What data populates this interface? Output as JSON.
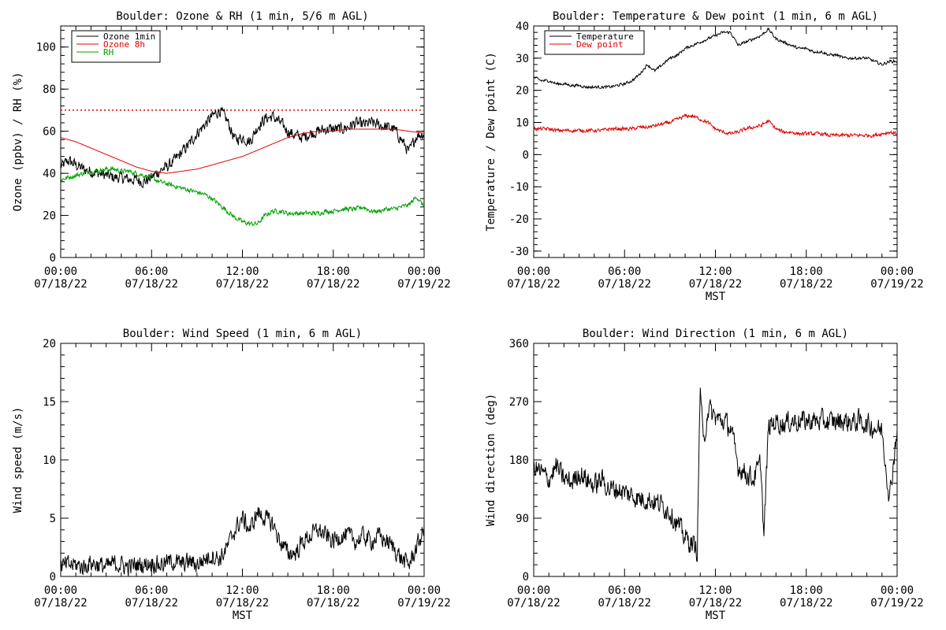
{
  "chart_data": [
    {
      "id": "ozone",
      "type": "line",
      "title": "Boulder: Ozone & RH (1 min, 5/6 m AGL)",
      "ylabel": "Ozone (ppbv) / RH (%)",
      "xlabel": "",
      "x_unit": "hour_of_day",
      "xlim": [
        0,
        24
      ],
      "ylim": [
        0,
        110
      ],
      "yticks": [
        0,
        20,
        40,
        60,
        80,
        100
      ],
      "xtick_labels": [
        [
          "00:00",
          "07/18/22"
        ],
        [
          "06:00",
          "07/18/22"
        ],
        [
          "12:00",
          "07/18/22"
        ],
        [
          "18:00",
          "07/18/22"
        ],
        [
          "00:00",
          "07/19/22"
        ]
      ],
      "legend": "top-left",
      "reference_line": {
        "y": 70,
        "color": "#e00000",
        "style": "dotted"
      },
      "series": [
        {
          "name": "Ozone 1min",
          "color": "#000000",
          "noise": 2.5,
          "x": [
            0,
            0.5,
            1,
            1.5,
            2,
            2.5,
            3,
            3.5,
            4,
            4.5,
            5,
            5.5,
            6,
            6.5,
            7,
            7.5,
            8,
            8.5,
            9,
            9.5,
            10,
            10.5,
            11,
            11.5,
            12,
            12.5,
            13,
            13.5,
            14,
            14.5,
            15,
            15.5,
            16,
            16.5,
            17,
            17.5,
            18,
            18.5,
            19,
            19.5,
            20,
            20.5,
            21,
            21.5,
            22,
            22.5,
            23,
            23.5,
            24
          ],
          "y": [
            43,
            46,
            44,
            42,
            41,
            40,
            39,
            38,
            38,
            37,
            37,
            36,
            38,
            41,
            43,
            46,
            50,
            54,
            59,
            63,
            67,
            70,
            65,
            56,
            57,
            55,
            62,
            66,
            67,
            64,
            60,
            58,
            57,
            59,
            60,
            61,
            61,
            61,
            62,
            64,
            63,
            64,
            63,
            62,
            61,
            56,
            50,
            58,
            59
          ]
        },
        {
          "name": "Ozone 8h",
          "color": "#e00000",
          "noise": 0,
          "x": [
            0,
            1,
            2,
            3,
            4,
            5,
            6,
            7,
            8,
            9,
            10,
            11,
            12,
            13,
            14,
            15,
            16,
            17,
            18,
            19,
            20,
            21,
            22,
            23,
            24
          ],
          "y": [
            57,
            55,
            52,
            49,
            46,
            43,
            41,
            40,
            41,
            42,
            44,
            46,
            48,
            51,
            54,
            57,
            59,
            60,
            60,
            61,
            61,
            61,
            61,
            60,
            59
          ]
        },
        {
          "name": "RH",
          "color": "#00a000",
          "noise": 1.0,
          "x": [
            0,
            0.5,
            1,
            1.5,
            2,
            2.5,
            3,
            3.5,
            4,
            4.5,
            5,
            5.5,
            6,
            6.5,
            7,
            7.5,
            8,
            8.5,
            9,
            9.5,
            10,
            10.5,
            11,
            11.5,
            12,
            12.5,
            13,
            13.5,
            14,
            14.5,
            15,
            15.5,
            16,
            16.5,
            17,
            17.5,
            18,
            18.5,
            19,
            19.5,
            20,
            20.5,
            21,
            21.5,
            22,
            22.5,
            23,
            23.5,
            24
          ],
          "y": [
            37,
            38,
            39,
            40,
            41,
            41,
            42,
            42,
            41,
            41,
            40,
            39,
            38,
            36,
            35,
            34,
            33,
            32,
            31,
            30,
            28,
            25,
            22,
            19,
            17,
            16,
            16,
            20,
            22,
            22,
            21,
            21,
            21,
            21,
            21,
            22,
            22,
            23,
            23,
            23,
            24,
            22,
            22,
            23,
            23,
            24,
            25,
            29,
            24
          ]
        }
      ]
    },
    {
      "id": "temp",
      "type": "line",
      "title": "Boulder: Temperature & Dew point (1 min, 6 m AGL)",
      "ylabel": "Temperature / Dew point (C)",
      "xlabel": "MST",
      "x_unit": "hour_of_day",
      "xlim": [
        0,
        24
      ],
      "ylim": [
        -32,
        40
      ],
      "yticks": [
        -30,
        -20,
        -10,
        0,
        10,
        20,
        30,
        40
      ],
      "xtick_labels": [
        [
          "00:00",
          "07/18/22"
        ],
        [
          "06:00",
          "07/18/22"
        ],
        [
          "12:00",
          "07/18/22"
        ],
        [
          "18:00",
          "07/18/22"
        ],
        [
          "00:00",
          "07/19/22"
        ]
      ],
      "legend": "top-left",
      "series": [
        {
          "name": "Temperature",
          "color": "#000000",
          "noise": 0.4,
          "x": [
            0,
            0.5,
            1,
            1.5,
            2,
            2.5,
            3,
            3.5,
            4,
            4.5,
            5,
            5.5,
            6,
            6.5,
            7,
            7.5,
            8,
            8.5,
            9,
            9.5,
            10,
            10.5,
            11,
            11.5,
            12,
            12.5,
            13,
            13.5,
            14,
            14.5,
            15,
            15.5,
            16,
            16.5,
            17,
            17.5,
            18,
            18.5,
            19,
            19.5,
            20,
            20.5,
            21,
            21.5,
            22,
            22.5,
            23,
            23.5,
            24
          ],
          "y": [
            24,
            23,
            23,
            22,
            22,
            21.5,
            21.5,
            21,
            21,
            21,
            21,
            21.5,
            22,
            23,
            25,
            28,
            26,
            28,
            30,
            31,
            33,
            34,
            35,
            36,
            37,
            38,
            38,
            34,
            35,
            36,
            37,
            39,
            36,
            35,
            34,
            33,
            33,
            32,
            32,
            31,
            31,
            30,
            30,
            30,
            30,
            29,
            28,
            29,
            29
          ]
        },
        {
          "name": "Dew point",
          "color": "#e00000",
          "noise": 0.5,
          "x": [
            0,
            0.5,
            1,
            1.5,
            2,
            2.5,
            3,
            3.5,
            4,
            4.5,
            5,
            5.5,
            6,
            6.5,
            7,
            7.5,
            8,
            8.5,
            9,
            9.5,
            10,
            10.5,
            11,
            11.5,
            12,
            12.5,
            13,
            13.5,
            14,
            14.5,
            15,
            15.5,
            16,
            16.5,
            17,
            17.5,
            18,
            18.5,
            19,
            19.5,
            20,
            20.5,
            21,
            21.5,
            22,
            22.5,
            23,
            23.5,
            24
          ],
          "y": [
            8,
            8,
            8,
            7.5,
            7.5,
            7.5,
            7.5,
            7.5,
            7.5,
            7.5,
            8,
            8,
            8,
            8,
            8.5,
            8.5,
            9,
            9.5,
            10,
            11,
            12,
            12,
            11,
            10,
            8,
            7,
            6.5,
            7,
            8,
            8.5,
            9,
            10.5,
            8,
            7,
            7,
            6.5,
            6.5,
            6.5,
            6.5,
            6,
            6,
            6,
            6,
            6,
            6,
            6,
            6.5,
            7,
            6.5
          ]
        }
      ]
    },
    {
      "id": "wspd",
      "type": "line",
      "title": "Boulder: Wind Speed (1 min, 6 m AGL)",
      "ylabel": "Wind speed (m/s)",
      "xlabel": "MST",
      "x_unit": "hour_of_day",
      "xlim": [
        0,
        24
      ],
      "ylim": [
        0,
        20
      ],
      "yticks": [
        0,
        5,
        10,
        15,
        20
      ],
      "xtick_labels": [
        [
          "00:00",
          "07/18/22"
        ],
        [
          "06:00",
          "07/18/22"
        ],
        [
          "12:00",
          "07/18/22"
        ],
        [
          "18:00",
          "07/18/22"
        ],
        [
          "00:00",
          "07/19/22"
        ]
      ],
      "series": [
        {
          "name": "",
          "color": "#000000",
          "noise": 0.7,
          "x": [
            0,
            0.5,
            1,
            1.5,
            2,
            2.5,
            3,
            3.5,
            4,
            4.5,
            5,
            5.5,
            6,
            6.5,
            7,
            7.5,
            8,
            8.5,
            9,
            9.5,
            10,
            10.5,
            11,
            11.5,
            12,
            12.5,
            13,
            13.5,
            14,
            14.5,
            15,
            15.5,
            16,
            16.5,
            17,
            17.5,
            18,
            18.5,
            19,
            19.5,
            20,
            20.5,
            21,
            21.5,
            22,
            22.5,
            23,
            23.5,
            24
          ],
          "y": [
            0.8,
            1,
            1,
            0.8,
            1.2,
            1,
            0.8,
            1.1,
            1,
            0.8,
            1,
            1,
            1.2,
            1,
            1.2,
            1.3,
            1,
            1.3,
            1,
            1.5,
            1.8,
            1.5,
            2.5,
            4,
            5,
            4,
            5.5,
            5,
            4.5,
            3,
            2,
            2,
            3,
            3.5,
            4,
            3.5,
            3,
            3.5,
            3.5,
            3,
            3.5,
            3,
            3.5,
            3,
            2.5,
            1.5,
            1,
            2.5,
            4
          ]
        }
      ]
    },
    {
      "id": "wdir",
      "type": "line",
      "title": "Boulder: Wind Direction (1 min, 6 m AGL)",
      "ylabel": "Wind direction (deg)",
      "xlabel": "MST",
      "x_unit": "hour_of_day",
      "xlim": [
        0,
        24
      ],
      "ylim": [
        0,
        360
      ],
      "yticks": [
        0,
        90,
        180,
        270,
        360
      ],
      "xtick_labels": [
        [
          "00:00",
          "07/18/22"
        ],
        [
          "06:00",
          "07/18/22"
        ],
        [
          "12:00",
          "07/18/22"
        ],
        [
          "18:00",
          "07/18/22"
        ],
        [
          "00:00",
          "07/19/22"
        ]
      ],
      "series": [
        {
          "name": "",
          "color": "#000000",
          "noise": 15,
          "x": [
            0,
            0.5,
            1,
            1.5,
            2,
            2.5,
            3,
            3.5,
            4,
            4.5,
            5,
            5.5,
            6,
            6.5,
            7,
            7.5,
            8,
            8.5,
            9,
            9.5,
            10,
            10.5,
            10.8,
            11,
            11.2,
            11.5,
            12,
            12.5,
            13,
            13.5,
            14,
            14.5,
            15,
            15.2,
            15.5,
            16,
            16.5,
            17,
            17.5,
            18,
            18.5,
            19,
            19.5,
            20,
            20.5,
            21,
            21.5,
            22,
            22.5,
            23,
            23.5,
            24
          ],
          "y": [
            170,
            160,
            150,
            170,
            150,
            145,
            160,
            150,
            140,
            150,
            135,
            135,
            130,
            125,
            120,
            120,
            115,
            110,
            100,
            80,
            60,
            50,
            40,
            300,
            200,
            260,
            245,
            240,
            230,
            170,
            160,
            150,
            175,
            60,
            230,
            240,
            235,
            240,
            240,
            240,
            240,
            240,
            238,
            240,
            240,
            238,
            240,
            235,
            230,
            225,
            120,
            230
          ]
        }
      ]
    }
  ]
}
